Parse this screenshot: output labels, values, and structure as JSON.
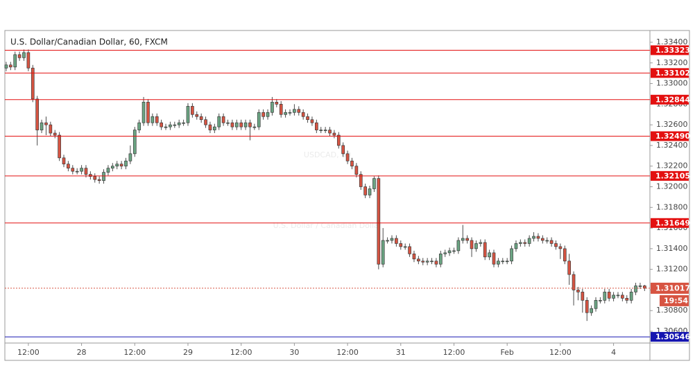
{
  "chart_data": {
    "type": "candlestick",
    "title": "U.S. Dollar/Canadian Dollar, 60, FXCM",
    "watermark": "USDCAD, 60",
    "watermark_subtitle": "U.S. Dollar / Canadian Dollar",
    "up_color": "#6ba583",
    "down_color": "#d75442",
    "xlim": [
      -5.3,
      140.2
    ],
    "ylim": [
      1.30486,
      1.33514
    ],
    "xticks": [
      {
        "value": 0,
        "label": "12:00"
      },
      {
        "value": 12,
        "label": "28"
      },
      {
        "value": 24,
        "label": "12:00"
      },
      {
        "value": 36,
        "label": "29"
      },
      {
        "value": 48,
        "label": "12:00"
      },
      {
        "value": 60,
        "label": "30"
      },
      {
        "value": 72,
        "label": "12:00"
      },
      {
        "value": 84,
        "label": "31"
      },
      {
        "value": 96,
        "label": "12:00"
      },
      {
        "value": 108,
        "label": "Feb"
      },
      {
        "value": 120,
        "label": "12:00"
      },
      {
        "value": 132,
        "label": "4"
      }
    ],
    "yticks": [
      {
        "value": 1.306,
        "label": "1.30600"
      },
      {
        "value": 1.308,
        "label": "1.30800"
      },
      {
        "value": 1.31,
        "label": "1.31000"
      },
      {
        "value": 1.312,
        "label": "1.31200"
      },
      {
        "value": 1.314,
        "label": "1.31400"
      },
      {
        "value": 1.316,
        "label": "1.31600"
      },
      {
        "value": 1.318,
        "label": "1.31800"
      },
      {
        "value": 1.32,
        "label": "1.32000"
      },
      {
        "value": 1.322,
        "label": "1.32200"
      },
      {
        "value": 1.324,
        "label": "1.32400"
      },
      {
        "value": 1.326,
        "label": "1.32600"
      },
      {
        "value": 1.328,
        "label": "1.32800"
      },
      {
        "value": 1.33,
        "label": "1.33000"
      },
      {
        "value": 1.332,
        "label": "1.33200"
      },
      {
        "value": 1.334,
        "label": "1.33400"
      }
    ],
    "levels": [
      {
        "value": 1.33323,
        "color": "#e31010"
      },
      {
        "value": 1.33102,
        "color": "#e31010"
      },
      {
        "value": 1.32844,
        "color": "#e31010"
      },
      {
        "value": 1.3249,
        "label": "1.32490",
        "color": "#e31010"
      },
      {
        "value": 1.32105,
        "color": "#e31010"
      },
      {
        "value": 1.31649,
        "color": "#e31010"
      },
      {
        "value": 1.30546,
        "color": "#1515b0"
      }
    ],
    "last_price": {
      "value": 1.31017,
      "color": "#d75442",
      "countdown": "19:54"
    },
    "candles": {
      "x": [
        -5,
        -4,
        -3,
        -2,
        -1,
        0,
        1,
        2,
        3,
        4,
        5,
        6,
        7,
        8,
        9,
        10,
        11,
        12,
        13,
        14,
        15,
        16,
        17,
        18,
        19,
        20,
        21,
        22,
        23,
        24,
        25,
        26,
        27,
        28,
        29,
        30,
        31,
        32,
        33,
        34,
        35,
        36,
        37,
        38,
        39,
        40,
        41,
        42,
        43,
        44,
        45,
        46,
        47,
        48,
        49,
        50,
        51,
        52,
        53,
        54,
        55,
        56,
        57,
        58,
        59,
        60,
        61,
        62,
        63,
        64,
        65,
        66,
        67,
        68,
        69,
        70,
        71,
        72,
        73,
        74,
        75,
        76,
        77,
        78,
        79,
        80,
        81,
        82,
        83,
        84,
        85,
        86,
        87,
        88,
        89,
        90,
        91,
        92,
        93,
        94,
        95,
        96,
        97,
        98,
        99,
        100,
        101,
        102,
        103,
        104,
        105,
        106,
        107,
        108,
        109,
        110,
        111,
        112,
        113,
        114,
        115,
        116,
        117,
        118,
        119,
        120,
        121,
        122,
        123,
        124,
        125,
        126,
        127,
        128,
        129,
        130,
        131,
        132,
        133,
        134,
        135,
        136,
        137,
        138,
        139
      ],
      "open": [
        1.3315,
        1.3318,
        1.3316,
        1.3328,
        1.3325,
        1.333,
        1.3315,
        1.3285,
        1.3255,
        1.3262,
        1.326,
        1.3252,
        1.325,
        1.3228,
        1.3222,
        1.3218,
        1.3215,
        1.3215,
        1.3218,
        1.3212,
        1.321,
        1.3207,
        1.3206,
        1.3214,
        1.3218,
        1.322,
        1.3222,
        1.322,
        1.3225,
        1.3232,
        1.3255,
        1.3262,
        1.3282,
        1.3262,
        1.3268,
        1.3262,
        1.3258,
        1.3258,
        1.326,
        1.326,
        1.3262,
        1.3262,
        1.3278,
        1.327,
        1.3268,
        1.3265,
        1.326,
        1.3255,
        1.3258,
        1.3268,
        1.3262,
        1.3262,
        1.3258,
        1.3262,
        1.3258,
        1.3262,
        1.3258,
        1.3258,
        1.3272,
        1.3268,
        1.3272,
        1.3282,
        1.328,
        1.327,
        1.3272,
        1.3272,
        1.3275,
        1.3272,
        1.3268,
        1.3265,
        1.3262,
        1.3255,
        1.3255,
        1.3255,
        1.3252,
        1.325,
        1.324,
        1.3232,
        1.3225,
        1.322,
        1.3212,
        1.32,
        1.3192,
        1.3198,
        1.3208,
        1.3125,
        1.3148,
        1.3148,
        1.315,
        1.3145,
        1.3142,
        1.3142,
        1.3135,
        1.313,
        1.3128,
        1.3127,
        1.3128,
        1.3128,
        1.3125,
        1.3135,
        1.3136,
        1.3138,
        1.3138,
        1.3148,
        1.315,
        1.3148,
        1.314,
        1.3145,
        1.3146,
        1.3132,
        1.3136,
        1.3125,
        1.3128,
        1.3128,
        1.3128,
        1.314,
        1.3145,
        1.3146,
        1.3145,
        1.315,
        1.3152,
        1.315,
        1.3148,
        1.3148,
        1.3145,
        1.3142,
        1.314,
        1.3128,
        1.3115,
        1.31,
        1.3098,
        1.309,
        1.3078,
        1.3082,
        1.309,
        1.309,
        1.3098,
        1.3092,
        1.3095,
        1.3095,
        1.3092,
        1.309,
        1.3098,
        1.3104,
        1.3104
      ],
      "high": [
        1.3321,
        1.3321,
        1.3331,
        1.3331,
        1.3333,
        1.3333,
        1.3318,
        1.3288,
        1.3265,
        1.3268,
        1.3263,
        1.3255,
        1.3253,
        1.3231,
        1.3225,
        1.3221,
        1.3218,
        1.3221,
        1.3221,
        1.3215,
        1.3213,
        1.321,
        1.3217,
        1.3221,
        1.3223,
        1.3225,
        1.3225,
        1.3228,
        1.324,
        1.3258,
        1.3265,
        1.3287,
        1.3285,
        1.3271,
        1.3271,
        1.3265,
        1.3261,
        1.3263,
        1.3263,
        1.3265,
        1.3265,
        1.3281,
        1.3281,
        1.3273,
        1.3271,
        1.3268,
        1.3263,
        1.3261,
        1.3271,
        1.3271,
        1.3265,
        1.3265,
        1.3265,
        1.3265,
        1.3265,
        1.3265,
        1.3261,
        1.3275,
        1.3275,
        1.3275,
        1.3287,
        1.3285,
        1.3283,
        1.3275,
        1.3275,
        1.328,
        1.3278,
        1.3275,
        1.3271,
        1.3268,
        1.3265,
        1.3258,
        1.3258,
        1.3258,
        1.3255,
        1.3253,
        1.3243,
        1.3235,
        1.3228,
        1.3223,
        1.3215,
        1.3203,
        1.3201,
        1.321,
        1.3211,
        1.316,
        1.3151,
        1.3153,
        1.3153,
        1.3148,
        1.3145,
        1.3145,
        1.3138,
        1.3133,
        1.3131,
        1.3131,
        1.3131,
        1.3131,
        1.3138,
        1.3139,
        1.3141,
        1.3141,
        1.3151,
        1.3163,
        1.3153,
        1.3151,
        1.3148,
        1.3149,
        1.3149,
        1.3139,
        1.3139,
        1.3131,
        1.3131,
        1.3131,
        1.3143,
        1.3148,
        1.3149,
        1.3149,
        1.3153,
        1.3156,
        1.3155,
        1.3153,
        1.3151,
        1.3151,
        1.3148,
        1.3145,
        1.3143,
        1.3135,
        1.3118,
        1.3103,
        1.3101,
        1.3093,
        1.3085,
        1.3093,
        1.3093,
        1.3101,
        1.3101,
        1.3098,
        1.3098,
        1.3098,
        1.3095,
        1.3101,
        1.3107,
        1.3107,
        1.3105
      ],
      "low": [
        1.3312,
        1.3313,
        1.3313,
        1.3322,
        1.3322,
        1.3312,
        1.3282,
        1.324,
        1.3252,
        1.325,
        1.3249,
        1.3247,
        1.3225,
        1.3219,
        1.3215,
        1.3212,
        1.3212,
        1.3212,
        1.3209,
        1.3207,
        1.3204,
        1.3203,
        1.3203,
        1.3211,
        1.3215,
        1.3217,
        1.3217,
        1.3217,
        1.3222,
        1.3229,
        1.3252,
        1.3259,
        1.3259,
        1.3259,
        1.3259,
        1.3255,
        1.3255,
        1.3255,
        1.3257,
        1.3257,
        1.3259,
        1.3259,
        1.3267,
        1.3265,
        1.3262,
        1.3257,
        1.3252,
        1.3252,
        1.3255,
        1.3259,
        1.3259,
        1.3255,
        1.3255,
        1.3255,
        1.3255,
        1.3245,
        1.3255,
        1.3255,
        1.3265,
        1.3265,
        1.3269,
        1.3277,
        1.3267,
        1.3267,
        1.3269,
        1.3269,
        1.3269,
        1.3265,
        1.3262,
        1.3259,
        1.3252,
        1.3252,
        1.3252,
        1.3249,
        1.3247,
        1.3237,
        1.3229,
        1.3222,
        1.3217,
        1.3209,
        1.3197,
        1.3189,
        1.3189,
        1.3195,
        1.312,
        1.3122,
        1.3145,
        1.3145,
        1.3142,
        1.3139,
        1.3139,
        1.3132,
        1.3127,
        1.3125,
        1.3124,
        1.3124,
        1.3125,
        1.3122,
        1.3122,
        1.3132,
        1.3133,
        1.3135,
        1.3135,
        1.3145,
        1.3145,
        1.3132,
        1.3137,
        1.3142,
        1.3129,
        1.3129,
        1.3122,
        1.3122,
        1.3125,
        1.3125,
        1.3125,
        1.3137,
        1.3142,
        1.3142,
        1.3142,
        1.3147,
        1.3147,
        1.3145,
        1.3145,
        1.3142,
        1.3139,
        1.313,
        1.3125,
        1.3105,
        1.3085,
        1.309,
        1.3078,
        1.307,
        1.3075,
        1.3079,
        1.3087,
        1.3087,
        1.3089,
        1.3089,
        1.3092,
        1.3089,
        1.3087,
        1.3087,
        1.3095,
        1.3101,
        1.3099
      ],
      "close": [
        1.3318,
        1.3316,
        1.3328,
        1.3325,
        1.333,
        1.3315,
        1.3285,
        1.3255,
        1.3262,
        1.326,
        1.3252,
        1.325,
        1.3228,
        1.3222,
        1.3218,
        1.3215,
        1.3215,
        1.3218,
        1.3212,
        1.321,
        1.3207,
        1.3206,
        1.3214,
        1.3218,
        1.322,
        1.3222,
        1.322,
        1.3225,
        1.3232,
        1.3255,
        1.3262,
        1.3282,
        1.3262,
        1.3268,
        1.3262,
        1.3258,
        1.3258,
        1.326,
        1.326,
        1.3262,
        1.3262,
        1.3278,
        1.327,
        1.3268,
        1.3265,
        1.326,
        1.3255,
        1.3258,
        1.3268,
        1.3262,
        1.3262,
        1.3258,
        1.3262,
        1.3258,
        1.3262,
        1.3258,
        1.3258,
        1.3272,
        1.3268,
        1.3272,
        1.3282,
        1.328,
        1.327,
        1.3272,
        1.3272,
        1.3275,
        1.3272,
        1.3268,
        1.3265,
        1.3262,
        1.3255,
        1.3255,
        1.3255,
        1.3252,
        1.325,
        1.324,
        1.3232,
        1.3225,
        1.322,
        1.3212,
        1.32,
        1.3192,
        1.3198,
        1.3208,
        1.3125,
        1.3148,
        1.3148,
        1.315,
        1.3145,
        1.3142,
        1.3142,
        1.3135,
        1.313,
        1.3128,
        1.3127,
        1.3128,
        1.3128,
        1.3125,
        1.3135,
        1.3136,
        1.3138,
        1.3138,
        1.3148,
        1.315,
        1.3148,
        1.314,
        1.3145,
        1.3146,
        1.3132,
        1.3136,
        1.3125,
        1.3128,
        1.3128,
        1.3128,
        1.314,
        1.3145,
        1.3146,
        1.3145,
        1.315,
        1.3152,
        1.315,
        1.3148,
        1.3148,
        1.3145,
        1.3142,
        1.314,
        1.3128,
        1.3115,
        1.31,
        1.3098,
        1.309,
        1.3078,
        1.3082,
        1.309,
        1.309,
        1.3098,
        1.3092,
        1.3095,
        1.3095,
        1.3092,
        1.309,
        1.3098,
        1.3104,
        1.3104,
        1.31017
      ]
    }
  }
}
